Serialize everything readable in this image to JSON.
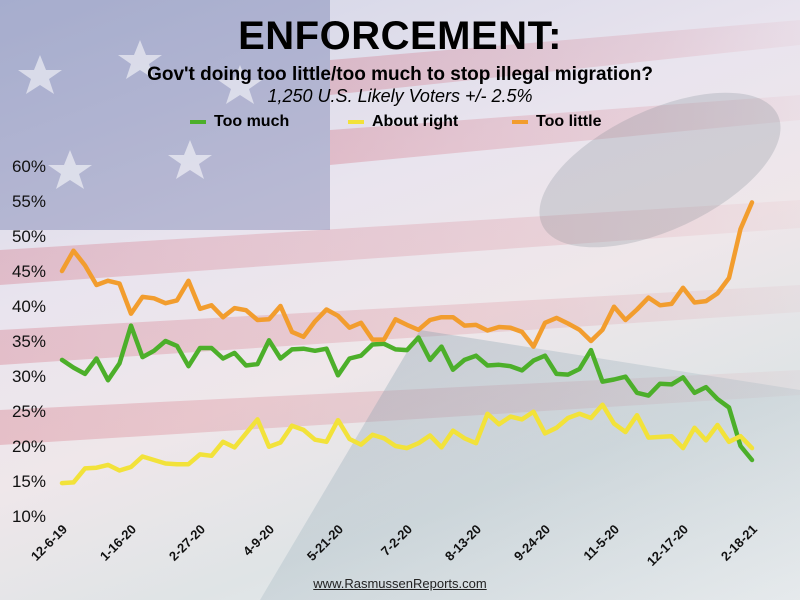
{
  "header": {
    "title": "ENFORCEMENT:",
    "subtitle": "Gov't doing too little/too much to stop illegal migration?",
    "sample": "1,250 U.S. Likely Voters +/- 2.5%"
  },
  "legend": [
    {
      "label": "Too much",
      "color": "#4caf2a"
    },
    {
      "label": "About right",
      "color": "#f2e23a"
    },
    {
      "label": "Too little",
      "color": "#f29d2e"
    }
  ],
  "footer": "www.RasmussenReports.com",
  "chart_data": {
    "type": "line",
    "title": "ENFORCEMENT:",
    "subtitle": "Gov't doing too little/too much to stop illegal migration?",
    "ylim": [
      10,
      60
    ],
    "yticks": [
      "10%",
      "15%",
      "20%",
      "25%",
      "30%",
      "35%",
      "40%",
      "45%",
      "50%",
      "55%",
      "60%"
    ],
    "xtick_labels": [
      "12-6-19",
      "1-16-20",
      "2-27-20",
      "4-9-20",
      "5-21-20",
      "7-2-20",
      "8-13-20",
      "9-24-20",
      "11-5-20",
      "12-17-20",
      "2-18-21"
    ],
    "legend_position": "top",
    "grid": false,
    "series": [
      {
        "name": "Too much",
        "color": "#4caf2a",
        "values": [
          32.3,
          31.2,
          30.3,
          32.5,
          29.4,
          31.8,
          37.2,
          32.7,
          33.6,
          35.0,
          34.3,
          31.4,
          34.0,
          34.0,
          32.5,
          33.3,
          31.5,
          31.7,
          35.1,
          32.5,
          33.8,
          33.9,
          33.6,
          33.9,
          30.1,
          32.5,
          32.9,
          34.5,
          34.6,
          33.8,
          33.7,
          35.5,
          32.3,
          34.2,
          30.9,
          32.3,
          32.9,
          31.5,
          31.6,
          31.4,
          30.8,
          32.2,
          32.9,
          30.3,
          30.2,
          31.0,
          33.7,
          29.2,
          29.5,
          29.9,
          27.6,
          27.2,
          28.9,
          28.8,
          29.8,
          27.6,
          28.4,
          26.7,
          25.5,
          20.0,
          18.0
        ]
      },
      {
        "name": "About right",
        "color": "#f2e23a",
        "values": [
          14.7,
          14.8,
          16.8,
          16.9,
          17.3,
          16.5,
          17.0,
          18.5,
          18.0,
          17.5,
          17.4,
          17.4,
          18.8,
          18.6,
          20.6,
          19.8,
          21.8,
          23.8,
          19.9,
          20.5,
          22.9,
          22.3,
          20.9,
          20.6,
          23.7,
          21.0,
          20.2,
          21.6,
          21.1,
          20.0,
          19.7,
          20.4,
          21.5,
          19.8,
          22.2,
          21.1,
          20.4,
          24.6,
          23.1,
          24.2,
          23.8,
          24.9,
          21.8,
          22.6,
          24.0,
          24.6,
          24.0,
          25.9,
          23.2,
          22.0,
          24.4,
          21.2,
          21.3,
          21.4,
          19.7,
          22.6,
          20.8,
          23.0,
          20.6,
          21.4,
          19.7
        ]
      },
      {
        "name": "Too little",
        "color": "#f29d2e",
        "values": [
          45.0,
          47.9,
          45.8,
          43.0,
          43.6,
          43.2,
          38.9,
          41.3,
          41.1,
          40.4,
          40.8,
          43.6,
          39.6,
          40.1,
          38.4,
          39.7,
          39.4,
          38.0,
          38.1,
          40.0,
          36.3,
          35.6,
          37.8,
          39.5,
          38.6,
          36.9,
          37.6,
          35.2,
          35.2,
          38.1,
          37.3,
          36.6,
          38.0,
          38.4,
          38.4,
          37.2,
          37.3,
          36.5,
          37.0,
          36.9,
          36.3,
          34.2,
          37.6,
          38.3,
          37.5,
          36.6,
          35.0,
          36.6,
          39.9,
          38.0,
          39.5,
          41.2,
          40.1,
          40.3,
          42.6,
          40.5,
          40.7,
          41.8,
          44.0,
          51.0,
          54.8
        ]
      }
    ]
  }
}
